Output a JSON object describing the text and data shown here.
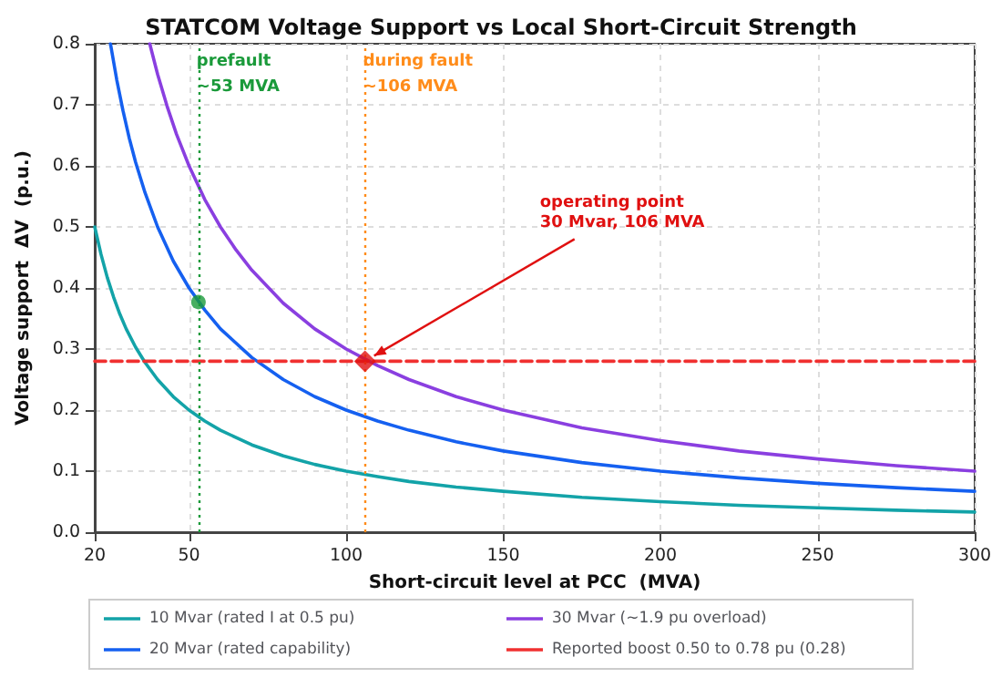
{
  "chart_data": {
    "type": "line",
    "title": "STATCOM Voltage Support vs Local Short-Circuit Strength",
    "xlabel": "Short-circuit level at PCC  (MVA)",
    "ylabel": "Voltage support  ΔV  (p.u.)",
    "xlim": [
      20,
      300
    ],
    "xticks": [
      20,
      50,
      100,
      150,
      200,
      250,
      300
    ],
    "ylim": [
      0,
      0.8
    ],
    "yticks": [
      {
        "value": 0,
        "label": "0.0"
      },
      0.1,
      0.2,
      0.3,
      0.4,
      0.5,
      0.6,
      0.7,
      0.8
    ],
    "grid": true,
    "legend": "bottom",
    "marker": "none",
    "line_style": "solid",
    "series": [
      {
        "name": "10 Mvar (rated I at 0.5 pu)",
        "color": "#13a3a8",
        "x": [
          20,
          22,
          24,
          26,
          28,
          30,
          33,
          36,
          40,
          45,
          50,
          55,
          60,
          70,
          80,
          90,
          100,
          110,
          120,
          135,
          150,
          175,
          200,
          225,
          250,
          275,
          300
        ],
        "values": [
          0.5,
          0.455,
          0.417,
          0.385,
          0.357,
          0.333,
          0.303,
          0.278,
          0.25,
          0.222,
          0.2,
          0.182,
          0.167,
          0.143,
          0.125,
          0.111,
          0.1,
          0.091,
          0.083,
          0.074,
          0.067,
          0.057,
          0.05,
          0.044,
          0.04,
          0.036,
          0.033
        ]
      },
      {
        "name": "20 Mvar (rated capability)",
        "color": "#1560f0",
        "x": [
          25,
          27,
          29,
          31,
          33,
          36,
          40,
          45,
          50,
          55,
          60,
          70,
          80,
          90,
          100,
          110,
          120,
          135,
          150,
          175,
          200,
          225,
          250,
          275,
          300
        ],
        "values": [
          0.8,
          0.741,
          0.69,
          0.645,
          0.606,
          0.556,
          0.5,
          0.444,
          0.4,
          0.364,
          0.333,
          0.286,
          0.25,
          0.222,
          0.2,
          0.182,
          0.167,
          0.148,
          0.133,
          0.114,
          0.1,
          0.089,
          0.08,
          0.073,
          0.067
        ]
      },
      {
        "name": "30 Mvar (~1.9 pu overload)",
        "color": "#8a3fe0",
        "x": [
          37.5,
          40,
          43,
          46,
          50,
          55,
          60,
          65,
          70,
          80,
          90,
          100,
          110,
          120,
          135,
          150,
          175,
          200,
          225,
          250,
          275,
          300
        ],
        "values": [
          0.8,
          0.75,
          0.698,
          0.652,
          0.6,
          0.545,
          0.5,
          0.462,
          0.429,
          0.375,
          0.333,
          0.3,
          0.273,
          0.25,
          0.222,
          0.2,
          0.171,
          0.15,
          0.133,
          0.12,
          0.109,
          0.1
        ]
      },
      {
        "name": "Reported boost 0.50 to 0.78 pu (0.28)",
        "color": "#f03030",
        "line_style": "dashed",
        "x": [
          20,
          300
        ],
        "values": [
          0.28,
          0.28
        ]
      },
      {
        "type": "scatter",
        "color": "#1a9a3a",
        "marker": "circle",
        "x": [
          53
        ],
        "values": [
          0.377
        ]
      },
      {
        "type": "scatter",
        "color": "#e01010",
        "marker": "diamond",
        "x": [
          106
        ],
        "values": [
          0.28
        ]
      }
    ],
    "ref_lines": [
      {
        "axis": "x",
        "value": 53,
        "label": "prefault\n~53 MVA",
        "color": "#1a9a3a",
        "line_style": "dotted"
      },
      {
        "axis": "x",
        "value": 106,
        "label": "during fault\n~106 MVA",
        "color": "#ff8c1a",
        "line_style": "dotted"
      }
    ],
    "annotations": [
      {
        "text": "operating point\n30 Mvar, 106 MVA",
        "x": 106,
        "y": 0.28
      }
    ]
  }
}
